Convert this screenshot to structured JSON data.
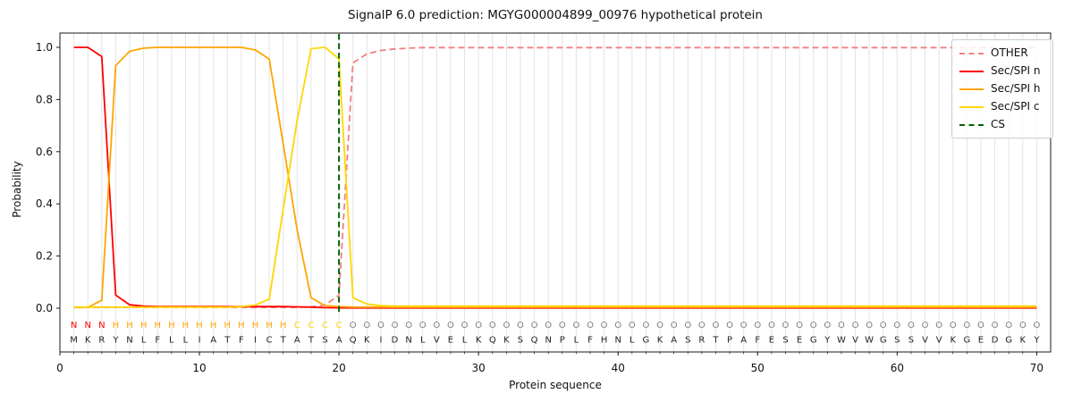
{
  "title": "SignalP 6.0 prediction: MGYG000004899_00976 hypothetical protein",
  "axes": {
    "xlabel": "Protein sequence",
    "ylabel": "Probability",
    "x_ticks": [
      0,
      10,
      20,
      30,
      40,
      50,
      60,
      70
    ],
    "y_ticks": [
      "0.0",
      "0.2",
      "0.4",
      "0.6",
      "0.8",
      "1.0"
    ],
    "xlim": [
      0,
      71
    ],
    "ylim": [
      0,
      1
    ],
    "grid": "vertical-minor-per-residue"
  },
  "legend": {
    "position": "upper right",
    "entries": [
      {
        "label": "OTHER",
        "color": "#f08080",
        "style": "dashed"
      },
      {
        "label": "Sec/SPI n",
        "color": "#ff0000",
        "style": "solid"
      },
      {
        "label": "Sec/SPI h",
        "color": "#ffa500",
        "style": "solid"
      },
      {
        "label": "Sec/SPI c",
        "color": "#ffd700",
        "style": "solid"
      },
      {
        "label": "CS",
        "color": "#006400",
        "style": "dashed"
      }
    ]
  },
  "sequence": {
    "residues": "MKRYNLFLLIATFICTATSAQKIDNLVELKQKSQNPLFHNLGKASRTPAFESEGYWVWGSSVVKGEDGKY",
    "region_labels": "NNNHHHHHHHHHHHHHCCCCOOOOOOOOOOOOOOOOOOOOOOOOOOOOOOOOOOOOOOOOOOOOOOOOOO",
    "label_colors": {
      "N": "#ff0000",
      "H": "#ffa500",
      "C": "#ffd700",
      "O": "#808080"
    },
    "residue_color": "#1f1f1f"
  },
  "chart_data": {
    "type": "line",
    "x_start": 1,
    "x_end": 70,
    "x_step": 1,
    "title": "SignalP 6.0 prediction: MGYG000004899_00976 hypothetical protein",
    "xlabel": "Protein sequence",
    "ylabel": "Probability",
    "ylim": [
      0,
      1
    ],
    "cs": {
      "label": "CS",
      "position": 20,
      "color": "#006400"
    },
    "series": [
      {
        "name": "OTHER",
        "color": "#f08080",
        "style": "dashed",
        "values": [
          0.003,
          0.003,
          0.003,
          0.003,
          0.003,
          0.003,
          0.003,
          0.003,
          0.003,
          0.003,
          0.003,
          0.003,
          0.003,
          0.003,
          0.003,
          0.003,
          0.003,
          0.005,
          0.012,
          0.05,
          0.94,
          0.975,
          0.988,
          0.994,
          0.997,
          0.999,
          0.999,
          0.999,
          0.999,
          0.999,
          0.999,
          0.999,
          0.999,
          0.999,
          0.999,
          0.999,
          0.999,
          0.999,
          0.999,
          0.999,
          0.999,
          0.999,
          0.999,
          0.999,
          0.999,
          0.999,
          0.999,
          0.999,
          0.999,
          0.999,
          0.999,
          0.999,
          0.999,
          0.999,
          0.999,
          0.999,
          0.999,
          0.999,
          0.999,
          0.999,
          0.999,
          0.999,
          0.999,
          0.999,
          0.999,
          0.999,
          0.999,
          0.999,
          0.999,
          0.999
        ]
      },
      {
        "name": "Sec/SPI n",
        "color": "#ff0000",
        "style": "solid",
        "values": [
          1.0,
          1.0,
          0.965,
          0.05,
          0.013,
          0.008,
          0.006,
          0.006,
          0.006,
          0.006,
          0.006,
          0.006,
          0.006,
          0.006,
          0.006,
          0.006,
          0.005,
          0.004,
          0.002,
          0.0015,
          0.001,
          0.001,
          0.001,
          0.001,
          0.001,
          0.001,
          0.001,
          0.001,
          0.001,
          0.001,
          0.001,
          0.001,
          0.001,
          0.001,
          0.001,
          0.001,
          0.001,
          0.001,
          0.001,
          0.001,
          0.001,
          0.001,
          0.001,
          0.001,
          0.001,
          0.001,
          0.001,
          0.001,
          0.001,
          0.001,
          0.001,
          0.001,
          0.001,
          0.001,
          0.001,
          0.001,
          0.001,
          0.001,
          0.001,
          0.001,
          0.001,
          0.001,
          0.001,
          0.001,
          0.001,
          0.001,
          0.001,
          0.001,
          0.001,
          0.001
        ]
      },
      {
        "name": "Sec/SPI h",
        "color": "#ffa500",
        "style": "solid",
        "values": [
          0.002,
          0.003,
          0.03,
          0.93,
          0.985,
          0.997,
          1.0,
          1.0,
          1.0,
          1.0,
          1.0,
          1.0,
          1.0,
          0.99,
          0.955,
          0.63,
          0.3,
          0.04,
          0.01,
          0.006,
          0.004,
          0.004,
          0.004,
          0.004,
          0.004,
          0.004,
          0.004,
          0.004,
          0.004,
          0.004,
          0.004,
          0.004,
          0.004,
          0.004,
          0.004,
          0.004,
          0.004,
          0.004,
          0.004,
          0.004,
          0.004,
          0.004,
          0.004,
          0.004,
          0.004,
          0.004,
          0.004,
          0.004,
          0.004,
          0.004,
          0.004,
          0.004,
          0.004,
          0.004,
          0.004,
          0.004,
          0.004,
          0.004,
          0.004,
          0.004,
          0.004,
          0.004,
          0.004,
          0.004,
          0.004,
          0.004,
          0.004,
          0.004,
          0.004,
          0.004
        ]
      },
      {
        "name": "Sec/SPI c",
        "color": "#ffd700",
        "style": "solid",
        "values": [
          0.004,
          0.004,
          0.004,
          0.004,
          0.004,
          0.004,
          0.004,
          0.004,
          0.004,
          0.004,
          0.004,
          0.004,
          0.006,
          0.012,
          0.035,
          0.38,
          0.72,
          0.995,
          1.0,
          0.955,
          0.04,
          0.016,
          0.01,
          0.008,
          0.008,
          0.008,
          0.008,
          0.008,
          0.008,
          0.008,
          0.008,
          0.008,
          0.008,
          0.008,
          0.008,
          0.008,
          0.008,
          0.008,
          0.008,
          0.008,
          0.008,
          0.008,
          0.008,
          0.008,
          0.008,
          0.008,
          0.008,
          0.008,
          0.008,
          0.008,
          0.008,
          0.008,
          0.008,
          0.008,
          0.008,
          0.008,
          0.008,
          0.008,
          0.008,
          0.008,
          0.008,
          0.008,
          0.008,
          0.008,
          0.008,
          0.008,
          0.008,
          0.008,
          0.008,
          0.008
        ]
      }
    ]
  }
}
